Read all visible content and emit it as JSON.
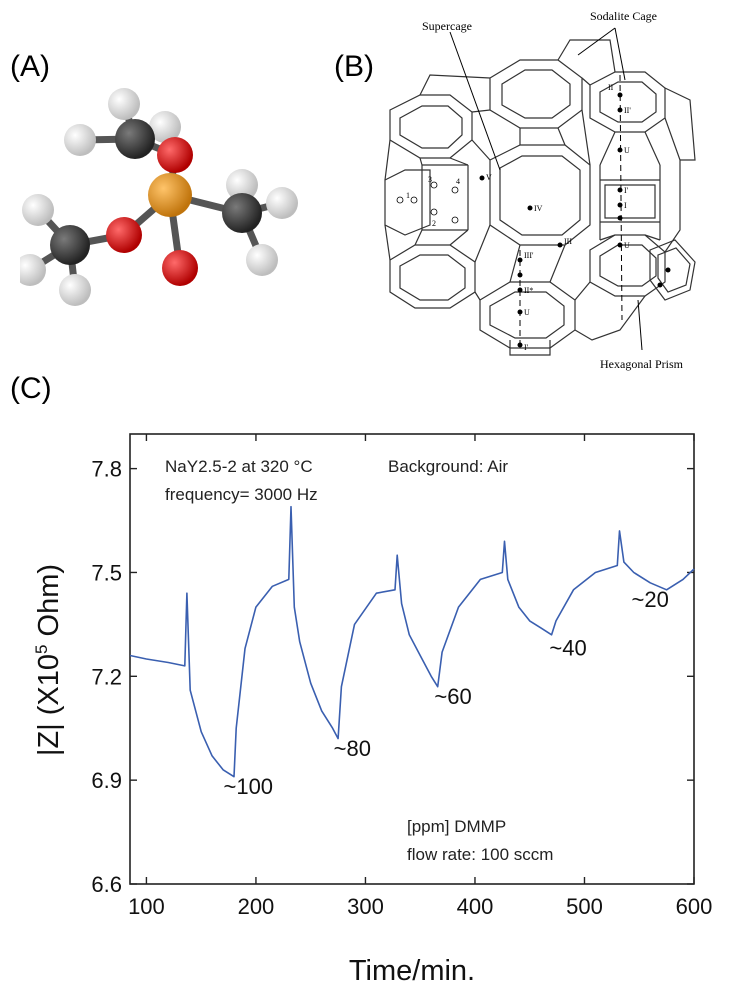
{
  "panels": {
    "a_label": "(A)",
    "b_label": "(B)",
    "c_label": "(C)"
  },
  "zeolite": {
    "supercage": "Supercage",
    "sodalite": "Sodalite Cage",
    "prism": "Hexagonal Prism",
    "sites": [
      "II",
      "II'",
      "I'",
      "I",
      "U",
      "V",
      "IV",
      "III'",
      "III",
      "II*",
      "I'",
      "1",
      "2",
      "3",
      "4"
    ]
  },
  "colors": {
    "curve": "#3a5fb0",
    "oxygen": "#e01818",
    "phosphorus": "#e79a1e",
    "carbon": "#3c3c3c",
    "hydrogen": "#e6e6e6"
  },
  "chart_data": {
    "type": "line",
    "xlabel": "Time/min.",
    "ylabel_main": "|Z| (X10",
    "ylabel_exp": "5",
    "ylabel_tail": " Ohm)",
    "xlim": [
      85,
      600
    ],
    "ylim": [
      6.6,
      7.9
    ],
    "x_ticks": [
      100,
      200,
      300,
      400,
      500,
      600
    ],
    "y_ticks": [
      6.6,
      6.9,
      7.2,
      7.5,
      7.8
    ],
    "y_tick_labels": [
      "6.6",
      "6.9",
      "7.2",
      "7.5",
      "7.8"
    ],
    "text_top_left_1": "NaY2.5-2 at 320 °C",
    "text_top_left_2": "frequency= 3000 Hz",
    "text_top_right": "Background: Air",
    "text_bottom_1": "[ppm] DMMP",
    "text_bottom_2": "flow rate: 100 sccm",
    "series": [
      {
        "x": [
          85,
          100,
          120,
          135,
          137,
          140,
          150,
          160,
          170,
          180,
          182,
          190,
          200,
          215,
          230,
          232,
          235,
          240,
          250,
          260,
          270,
          275,
          278,
          290,
          310,
          327,
          329,
          333,
          340,
          350,
          360,
          366,
          370,
          385,
          405,
          425,
          427,
          430,
          440,
          450,
          460,
          470,
          474,
          490,
          510,
          530,
          532,
          536,
          545,
          560,
          575,
          590,
          600
        ],
        "y": [
          7.26,
          7.25,
          7.24,
          7.23,
          7.44,
          7.16,
          7.04,
          6.97,
          6.93,
          6.91,
          7.05,
          7.28,
          7.4,
          7.46,
          7.48,
          7.69,
          7.4,
          7.3,
          7.18,
          7.1,
          7.05,
          7.02,
          7.17,
          7.35,
          7.44,
          7.45,
          7.55,
          7.41,
          7.32,
          7.26,
          7.2,
          7.17,
          7.27,
          7.4,
          7.48,
          7.5,
          7.59,
          7.48,
          7.4,
          7.36,
          7.34,
          7.32,
          7.36,
          7.45,
          7.5,
          7.52,
          7.62,
          7.53,
          7.5,
          7.47,
          7.45,
          7.48,
          7.51
        ]
      }
    ],
    "annotations": [
      {
        "text": "~100",
        "x": 193,
        "y": 6.86
      },
      {
        "text": "~80",
        "x": 288,
        "y": 6.97
      },
      {
        "text": "~60",
        "x": 380,
        "y": 7.12
      },
      {
        "text": "~40",
        "x": 485,
        "y": 7.26
      },
      {
        "text": "~20",
        "x": 560,
        "y": 7.4
      }
    ]
  }
}
